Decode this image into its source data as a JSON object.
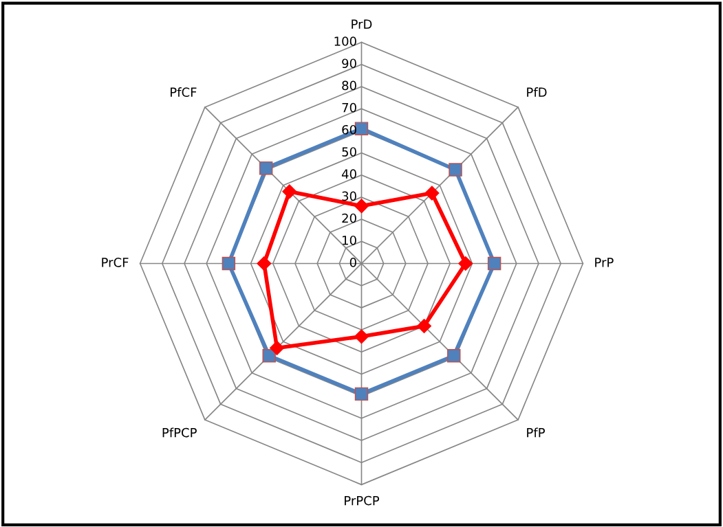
{
  "chart_data": {
    "type": "radar",
    "categories": [
      "PrD",
      "PfD",
      "PrP",
      "PfP",
      "PrPCP",
      "PfPCP",
      "PrCF",
      "PfCF"
    ],
    "series": [
      {
        "color": "#4f81bd",
        "marker": "square",
        "values": [
          61,
          60,
          60,
          59,
          59,
          59,
          60,
          61
        ]
      },
      {
        "color": "#ff0000",
        "marker": "diamond",
        "values": [
          26,
          45,
          47,
          40,
          33,
          54,
          44,
          46
        ]
      }
    ],
    "ylim": [
      0,
      100
    ],
    "yticks": [
      0,
      10,
      20,
      30,
      40,
      50,
      60,
      70,
      80,
      90,
      100
    ],
    "grid": true
  }
}
